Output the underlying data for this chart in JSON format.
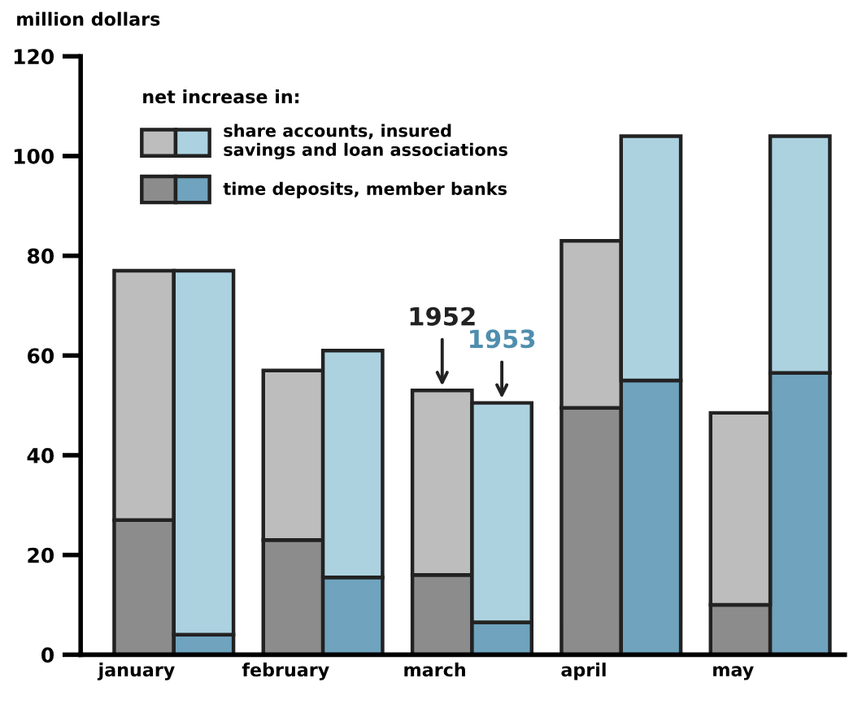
{
  "chart_data": {
    "type": "bar",
    "stacked": true,
    "ylabel": "million dollars",
    "legend_title": "net increase in:",
    "categories": [
      "january",
      null,
      "february",
      null,
      "march",
      null,
      "april",
      null,
      "may",
      null
    ],
    "series": [
      {
        "color": "#8c8c8c",
        "values": [
          27,
          null,
          23,
          null,
          16,
          null,
          49.5,
          null,
          10,
          null
        ]
      },
      {
        "name": "time deposits, member banks",
        "color": "#6fa3be",
        "values": [
          null,
          4,
          null,
          15.5,
          null,
          6.5,
          null,
          55,
          null,
          56.5
        ]
      },
      {
        "color": "#bdbdbd",
        "values": [
          50,
          null,
          34,
          null,
          37,
          null,
          33.5,
          null,
          38.5,
          null
        ]
      },
      {
        "name": "share accounts, insured savings and loan associations",
        "color": "#acd2e0",
        "values": [
          null,
          73,
          null,
          45.5,
          null,
          44,
          null,
          49,
          null,
          47.5
        ]
      }
    ],
    "annotations": [
      {
        "text": "1952",
        "x": "march",
        "y": 53
      },
      "1953"
    ],
    "ylim": [
      0,
      120
    ],
    "yticks": [
      0,
      20,
      40,
      60,
      80,
      100,
      120
    ],
    "legend": "top left"
  }
}
